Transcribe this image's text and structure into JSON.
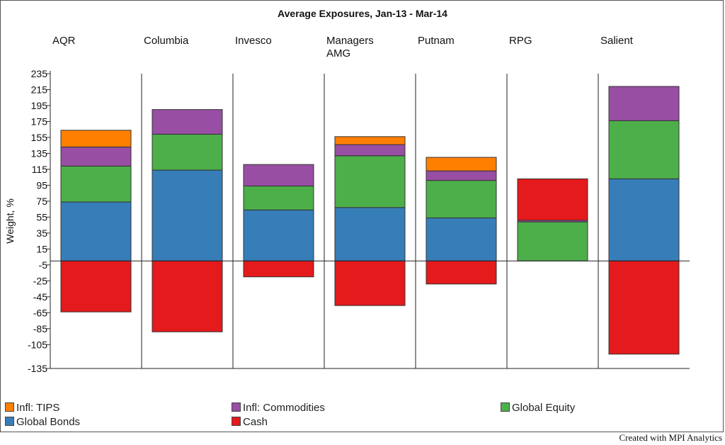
{
  "credit": "Created with MPI Analytics",
  "chart_data": {
    "type": "bar",
    "stacked": true,
    "title": "Average Exposures, Jan-13 - Mar-14",
    "ylabel": "Weight, %",
    "ylim": [
      -135,
      235
    ],
    "yticks": [
      235,
      215,
      195,
      175,
      155,
      135,
      115,
      95,
      75,
      55,
      35,
      15,
      -5,
      -25,
      -45,
      -65,
      -85,
      -105,
      -135
    ],
    "categories": [
      "AQR",
      "Columbia",
      "Invesco",
      "Managers AMG",
      "Putnam",
      "RPG",
      "Salient"
    ],
    "category_label_lines": [
      [
        "AQR"
      ],
      [
        "Columbia"
      ],
      [
        "Invesco"
      ],
      [
        "Managers",
        "AMG"
      ],
      [
        "Putnam"
      ],
      [
        "RPG"
      ],
      [
        "Salient"
      ]
    ],
    "series": [
      {
        "name": "Global Bonds",
        "color": "#377eb8",
        "values": [
          74,
          114,
          64,
          67,
          54,
          0,
          103
        ]
      },
      {
        "name": "Global Equity",
        "color": "#4daf4a",
        "values": [
          45,
          45,
          30,
          65,
          47,
          49,
          73
        ]
      },
      {
        "name": "Infl: Commodities",
        "color": "#984ea3",
        "values": [
          24,
          31,
          27,
          14,
          12,
          2,
          43
        ]
      },
      {
        "name": "Infl: TIPS",
        "color": "#ff7f00",
        "values": [
          21,
          0,
          0,
          10,
          17,
          0,
          0
        ]
      },
      {
        "name": "Cash",
        "color": "#e41a1c",
        "values": [
          -64,
          -89,
          -20,
          -56,
          -29,
          52,
          -117
        ]
      }
    ],
    "legend": [
      {
        "name": "Infl: TIPS",
        "color": "#ff7f00"
      },
      {
        "name": "Infl: Commodities",
        "color": "#984ea3"
      },
      {
        "name": "Global Equity",
        "color": "#4daf4a"
      },
      {
        "name": "Global Bonds",
        "color": "#377eb8"
      },
      {
        "name": "Cash",
        "color": "#e41a1c"
      }
    ],
    "legend_position": "bottom",
    "grid": false
  }
}
